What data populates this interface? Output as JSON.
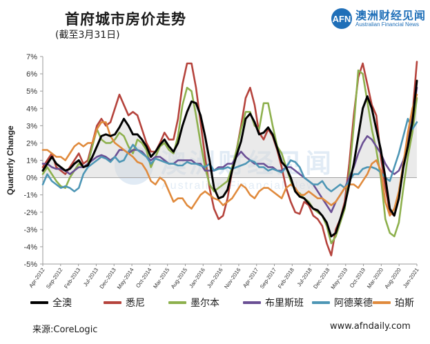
{
  "header": {
    "title": "首府城市房价走势",
    "subtitle": "(截至3月31日)"
  },
  "logo": {
    "badge": "AFN",
    "name_cn": "澳洲财经见闻",
    "name_en": "Australian Financial News"
  },
  "watermark": {
    "text_cn": "澳洲财经见闻",
    "text_en": "Australian Financial News"
  },
  "footer": {
    "source": "来源:CoreLogic",
    "site": "www.afndaily.com"
  },
  "chart_data": {
    "type": "line",
    "title": "首府城市房价走势",
    "subtitle": "(截至3月31日)",
    "ylabel": "Quarterly Change",
    "xlabel": "",
    "ylim": [
      -5,
      7
    ],
    "y_ticks": [
      "-5%",
      "-4%",
      "-3%",
      "-2%",
      "-1%",
      "0%",
      "1%",
      "2%",
      "3%",
      "4%",
      "5%",
      "6%",
      "7%"
    ],
    "x_tick_labels": [
      "Apr-2012",
      "Sep-2012",
      "Feb-2013",
      "Jul-2013",
      "Dec-2013",
      "May-2014",
      "Oct-2014",
      "Mar-2015",
      "Aug-2015",
      "Jan-2016",
      "Jun-2016",
      "Nov-2016",
      "Apr-2017",
      "Sep-2017",
      "Feb-2018",
      "Jul-2018",
      "Dec-2018",
      "May-2019",
      "Oct-2019",
      "Mar-2020",
      "Aug-2020",
      "Jan-2021"
    ],
    "x_start": "Apr-2012",
    "x_end": "Mar-2021",
    "legend_position": "bottom",
    "shaded_area": "between 全澳 series and 0%",
    "series": [
      {
        "name": "全澳",
        "color": "#000000",
        "values": [
          0.4,
          0.8,
          1.2,
          0.8,
          0.6,
          0.4,
          0.5,
          0.8,
          1.0,
          0.6,
          0.7,
          1.2,
          1.8,
          2.4,
          2.5,
          2.4,
          2.5,
          2.9,
          3.4,
          3.0,
          2.5,
          2.5,
          2.2,
          1.8,
          1.2,
          1.5,
          1.9,
          2.2,
          1.8,
          1.5,
          2.0,
          3.0,
          3.8,
          4.4,
          4.3,
          3.6,
          2.4,
          1.0,
          -0.6,
          -1.2,
          -1.1,
          -0.7,
          0.4,
          1.3,
          2.1,
          3.4,
          3.7,
          3.2,
          2.5,
          2.6,
          2.9,
          2.5,
          1.7,
          0.9,
          0.6,
          0.0,
          -0.8,
          -1.1,
          -1.2,
          -1.5,
          -1.8,
          -1.9,
          -2.2,
          -2.6,
          -3.4,
          -3.2,
          -2.4,
          -1.6,
          -0.4,
          0.8,
          2.4,
          4.0,
          4.7,
          4.0,
          2.8,
          1.6,
          0.0,
          -1.8,
          -2.2,
          -1.2,
          0.6,
          1.8,
          3.2,
          5.6
        ]
      },
      {
        "name": "悉尼",
        "color": "#b5433c",
        "values": [
          0.6,
          1.0,
          1.4,
          0.6,
          0.4,
          0.2,
          0.6,
          1.0,
          1.4,
          0.8,
          1.0,
          2.0,
          3.0,
          3.4,
          3.0,
          3.2,
          4.0,
          4.8,
          4.2,
          3.6,
          3.8,
          3.6,
          2.8,
          2.0,
          1.5,
          1.5,
          2.0,
          2.6,
          2.2,
          2.2,
          3.4,
          5.4,
          6.6,
          6.6,
          5.2,
          3.2,
          1.2,
          -0.6,
          -1.8,
          -2.4,
          -2.2,
          -1.2,
          0.4,
          1.6,
          3.0,
          4.6,
          5.2,
          4.2,
          2.6,
          2.2,
          2.8,
          2.4,
          1.6,
          0.6,
          -0.6,
          -1.4,
          -2.0,
          -2.1,
          -1.4,
          -1.6,
          -2.2,
          -2.4,
          -2.8,
          -3.8,
          -4.5,
          -3.0,
          -2.4,
          -1.4,
          0.8,
          3.6,
          5.8,
          6.6,
          5.4,
          4.2,
          3.6,
          1.2,
          -0.6,
          -2.0,
          -2.2,
          -1.0,
          0.8,
          2.2,
          3.6,
          6.7
        ]
      },
      {
        "name": "墨尔本",
        "color": "#8db04d",
        "values": [
          0.2,
          0.6,
          0.2,
          -0.2,
          -0.5,
          -0.6,
          0.0,
          0.4,
          0.8,
          0.6,
          0.8,
          1.8,
          2.8,
          2.2,
          2.0,
          2.0,
          2.2,
          2.6,
          2.4,
          1.8,
          1.4,
          2.2,
          2.0,
          1.6,
          0.6,
          1.2,
          1.8,
          2.0,
          1.6,
          1.4,
          2.4,
          4.2,
          5.2,
          5.0,
          3.6,
          2.0,
          0.6,
          -0.4,
          -0.8,
          -0.6,
          -0.4,
          -0.2,
          0.6,
          1.6,
          2.8,
          3.8,
          3.8,
          3.0,
          2.8,
          4.3,
          4.3,
          3.0,
          1.8,
          1.4,
          0.6,
          -0.2,
          -0.8,
          -0.9,
          -1.2,
          -1.4,
          -1.8,
          -2.0,
          -2.2,
          -2.8,
          -3.8,
          -3.4,
          -2.6,
          -1.8,
          0.2,
          3.0,
          6.2,
          6.0,
          4.4,
          2.8,
          1.6,
          0.0,
          -2.4,
          -3.2,
          -3.4,
          -2.6,
          -0.6,
          1.2,
          2.6,
          4.6
        ]
      },
      {
        "name": "布里斯班",
        "color": "#6a4f94",
        "values": [
          0.8,
          0.8,
          0.6,
          0.5,
          0.5,
          0.4,
          0.2,
          0.4,
          0.6,
          0.6,
          0.8,
          1.0,
          1.2,
          1.3,
          1.2,
          1.0,
          1.2,
          1.6,
          1.6,
          1.4,
          1.6,
          1.6,
          1.5,
          1.2,
          1.0,
          1.2,
          1.2,
          1.0,
          0.8,
          0.8,
          1.0,
          1.0,
          1.0,
          1.0,
          0.8,
          0.8,
          0.4,
          0.4,
          0.4,
          0.6,
          0.6,
          0.8,
          0.8,
          1.2,
          1.5,
          1.2,
          1.0,
          0.8,
          0.8,
          0.8,
          0.6,
          0.6,
          0.4,
          0.4,
          0.6,
          0.6,
          0.4,
          0.2,
          0.0,
          -0.2,
          -0.4,
          -0.8,
          -1.2,
          -1.6,
          -2.0,
          -1.4,
          -1.0,
          -0.6,
          0.0,
          0.6,
          1.4,
          2.0,
          2.4,
          2.2,
          1.8,
          1.4,
          0.8,
          0.4,
          0.2,
          0.4,
          1.0,
          2.0,
          3.4,
          5.2
        ]
      },
      {
        "name": "阿德莱德",
        "color": "#4d96b5",
        "values": [
          -0.4,
          0.2,
          -0.2,
          -0.4,
          -0.6,
          -0.5,
          -0.6,
          -0.8,
          -0.6,
          0.2,
          0.6,
          0.8,
          1.0,
          1.2,
          1.1,
          0.9,
          1.2,
          0.9,
          1.0,
          1.5,
          1.9,
          1.6,
          1.4,
          1.2,
          0.8,
          1.1,
          1.0,
          0.9,
          0.8,
          0.8,
          0.7,
          0.7,
          0.9,
          0.8,
          0.8,
          0.7,
          0.6,
          0.8,
          0.4,
          0.5,
          0.5,
          0.6,
          0.5,
          0.6,
          0.7,
          0.8,
          1.0,
          0.9,
          0.6,
          0.6,
          0.4,
          0.5,
          0.4,
          0.3,
          0.6,
          1.0,
          0.9,
          0.6,
          0.0,
          -0.2,
          -0.4,
          -0.4,
          -0.2,
          -0.6,
          -0.8,
          -0.6,
          -0.4,
          -0.6,
          -0.2,
          0.2,
          0.2,
          0.5,
          0.6,
          0.6,
          0.5,
          0.3,
          0.0,
          -0.2,
          0.6,
          1.4,
          2.4,
          3.4,
          2.8,
          3.2
        ]
      },
      {
        "name": "珀斯",
        "color": "#e08a3c",
        "values": [
          1.6,
          1.6,
          1.4,
          1.2,
          1.2,
          1.0,
          1.4,
          1.8,
          2.0,
          1.8,
          2.0,
          2.0,
          2.8,
          3.2,
          3.2,
          2.4,
          2.0,
          1.8,
          1.6,
          1.4,
          1.2,
          0.9,
          0.8,
          0.4,
          -0.2,
          -0.4,
          0.0,
          -0.2,
          -0.8,
          -1.4,
          -1.2,
          -1.2,
          -1.6,
          -1.8,
          -1.4,
          -1.0,
          -0.8,
          -1.0,
          -1.2,
          -1.3,
          -1.6,
          -1.4,
          -1.2,
          -0.8,
          -0.4,
          -0.6,
          -1.0,
          -1.2,
          -0.8,
          -0.6,
          -0.6,
          -0.8,
          -1.0,
          -1.2,
          -0.6,
          -0.4,
          -0.6,
          -1.0,
          -1.0,
          -0.8,
          -1.0,
          -1.2,
          -1.2,
          -1.4,
          -1.6,
          -1.4,
          -1.0,
          -0.6,
          -0.4,
          -0.4,
          -0.6,
          -0.2,
          0.2,
          0.8,
          1.0,
          0.4,
          -1.4,
          -2.2,
          -1.8,
          -0.8,
          0.8,
          2.6,
          4.0,
          4.8
        ]
      }
    ]
  }
}
